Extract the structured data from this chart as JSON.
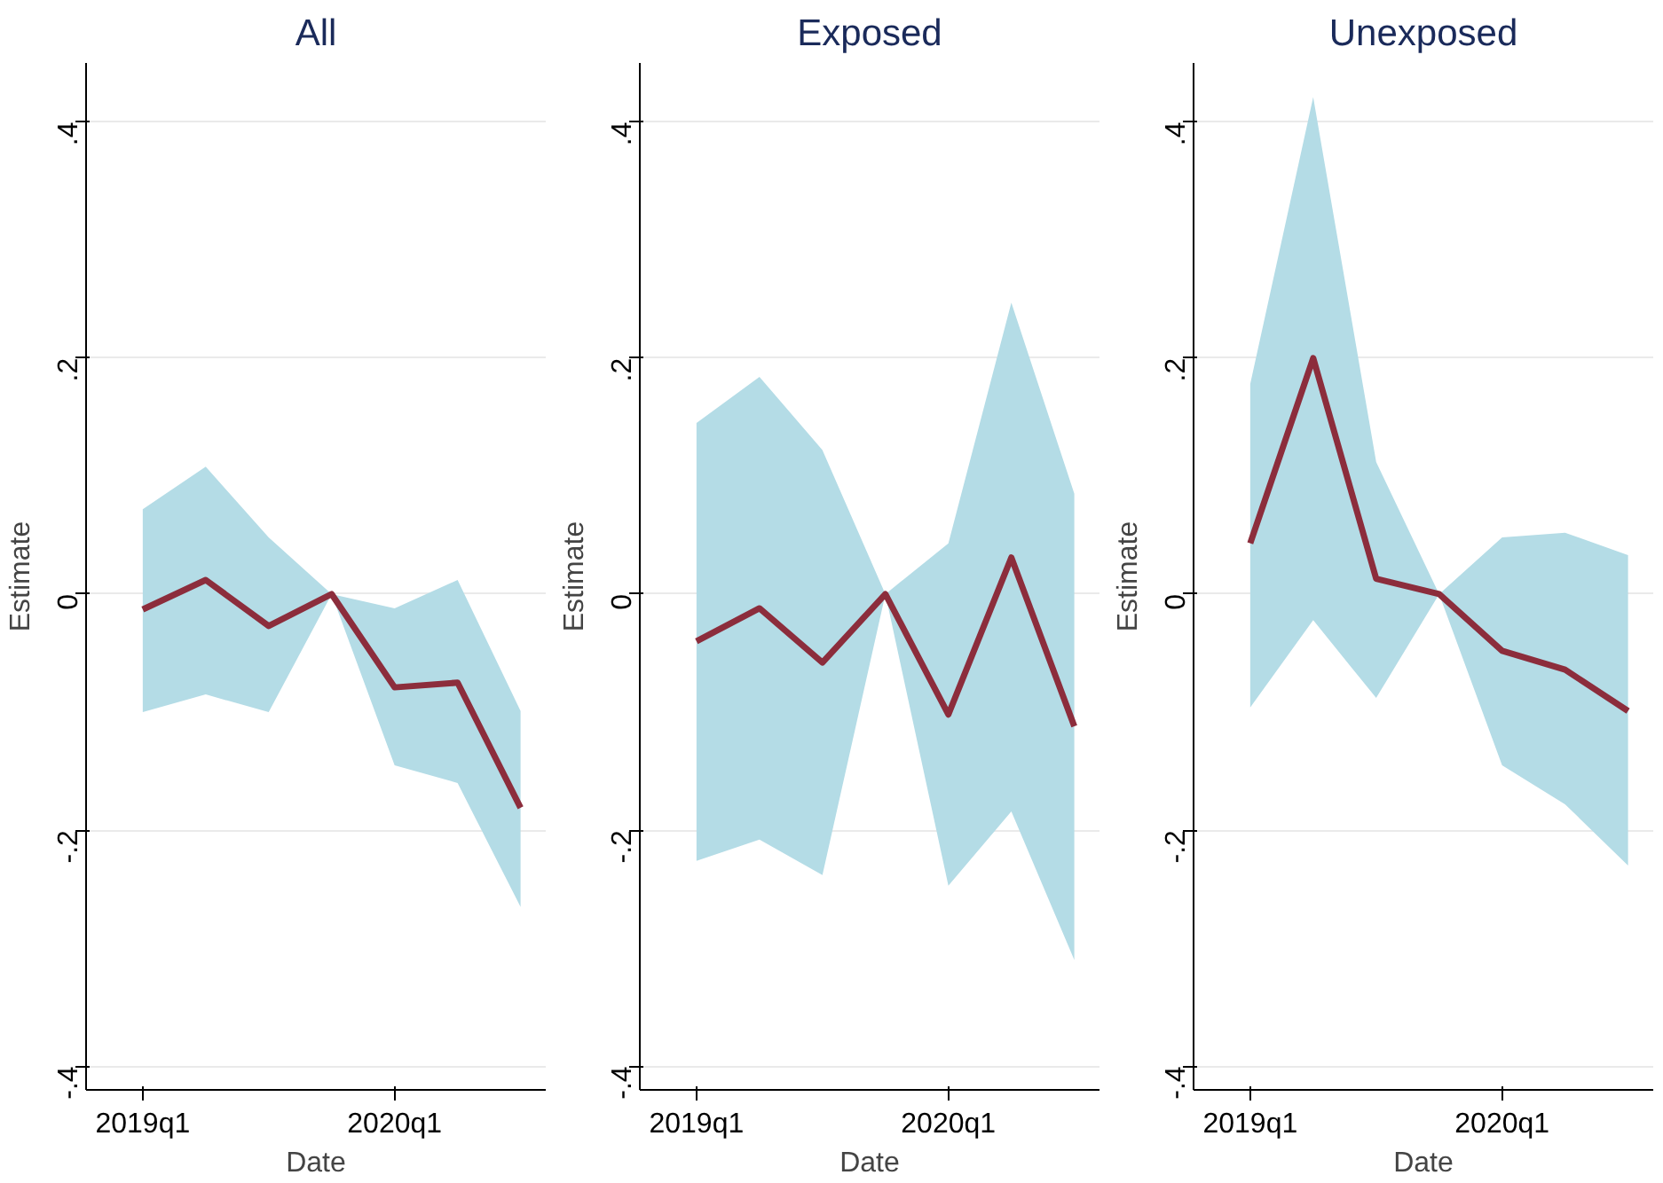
{
  "chart_data": [
    {
      "type": "line",
      "title": "All",
      "xlabel": "Date",
      "ylabel": "Estimate",
      "categories": [
        "2019q1",
        null,
        null,
        null,
        "2020q1",
        null,
        null
      ],
      "series": [
        {
          "color": "#8c2d3c",
          "values": [
            -0.013,
            0.012,
            -0.027,
            0,
            -0.079,
            -0.075,
            -0.181
          ],
          "lower": [
            -0.1,
            -0.085,
            -0.1,
            0,
            -0.145,
            -0.16,
            -0.265
          ],
          "upper": [
            0.072,
            0.108,
            0.048,
            0,
            -0.012,
            0.012,
            -0.099
          ]
        }
      ],
      "ylim": [
        -0.42,
        0.45
      ],
      "yticks": [
        {
          "value": -0.4,
          "label": "-.4"
        },
        {
          "value": -0.2,
          "label": "-.2"
        },
        {
          "value": 0,
          "label": "0"
        },
        {
          "value": 0.2,
          "label": ".2"
        },
        {
          "value": 0.4,
          "label": ".4"
        }
      ],
      "grid": "y",
      "line_style": "solid"
    },
    {
      "type": "line",
      "title": "Exposed",
      "xlabel": "Date",
      "ylabel": "Estimate",
      "categories": [
        "2019q1",
        null,
        null,
        null,
        "2020q1",
        null,
        null
      ],
      "series": [
        {
          "color": "#8c2d3c",
          "values": [
            -0.04,
            -0.012,
            -0.058,
            0,
            -0.102,
            0.031,
            -0.112
          ],
          "lower": [
            -0.226,
            -0.208,
            -0.238,
            0,
            -0.247,
            -0.184,
            -0.31
          ],
          "upper": [
            0.145,
            0.184,
            0.122,
            0,
            0.043,
            0.247,
            0.085
          ]
        }
      ],
      "ylim": [
        -0.42,
        0.45
      ],
      "yticks": [
        {
          "value": -0.4,
          "label": "-.4"
        },
        {
          "value": -0.2,
          "label": "-.2"
        },
        {
          "value": 0,
          "label": "0"
        },
        {
          "value": 0.2,
          "label": ".2"
        },
        {
          "value": 0.4,
          "label": ".4"
        }
      ],
      "grid": "y",
      "line_style": "solid"
    },
    {
      "type": "line",
      "title": "Unexposed",
      "xlabel": "Date",
      "ylabel": "Estimate",
      "categories": [
        "2019q1",
        null,
        null,
        null,
        "2020q1",
        null,
        null
      ],
      "series": [
        {
          "color": "#8c2d3c",
          "values": [
            0.043,
            0.2,
            0.013,
            0,
            -0.048,
            -0.064,
            -0.099
          ],
          "lower": [
            -0.096,
            -0.022,
            -0.088,
            0,
            -0.145,
            -0.178,
            -0.23
          ],
          "upper": [
            0.178,
            0.421,
            0.112,
            0,
            0.048,
            0.052,
            0.033
          ]
        }
      ],
      "ylim": [
        -0.42,
        0.45
      ],
      "yticks": [
        {
          "value": -0.4,
          "label": "-.4"
        },
        {
          "value": -0.2,
          "label": "-.2"
        },
        {
          "value": 0,
          "label": "0"
        },
        {
          "value": 0.2,
          "label": ".2"
        },
        {
          "value": 0.4,
          "label": ".4"
        }
      ],
      "grid": "y",
      "line_style": "solid"
    }
  ]
}
